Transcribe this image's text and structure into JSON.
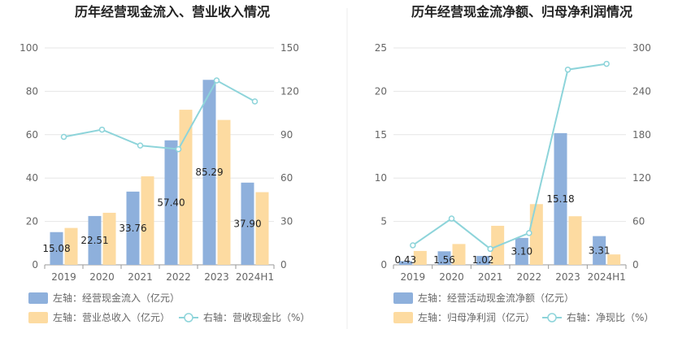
{
  "chart_data": [
    {
      "type": "bar",
      "title": "历年经营现金流入、营业收入情况",
      "categories": [
        "2019",
        "2020",
        "2021",
        "2022",
        "2023",
        "2024H1"
      ],
      "left_axis": {
        "min": 0,
        "max": 100,
        "ticks": [
          0,
          20,
          40,
          60,
          80,
          100
        ]
      },
      "right_axis": {
        "min": 0,
        "max": 150,
        "ticks": [
          0,
          30,
          60,
          90,
          120,
          150
        ]
      },
      "series": [
        {
          "name": "左轴：经营现金流入（亿元）",
          "kind": "bar",
          "axis": "left",
          "color": "#8eb0dc",
          "values": [
            15.08,
            22.51,
            33.76,
            57.4,
            85.29,
            37.9
          ],
          "labels": [
            "15.08",
            "22.51",
            "33.76",
            "57.40",
            "85.29",
            "37.90"
          ]
        },
        {
          "name": "左轴：营业总收入（亿元）",
          "kind": "bar",
          "axis": "left",
          "color": "#fddba1",
          "values": [
            17.0,
            24.0,
            40.8,
            71.5,
            66.8,
            33.5
          ]
        },
        {
          "name": "右轴：营收现金比（%）",
          "kind": "line",
          "axis": "right",
          "color": "#8dd4da",
          "values": [
            88.5,
            93.5,
            82.5,
            80.0,
            127.5,
            113.0
          ]
        }
      ]
    },
    {
      "type": "bar",
      "title": "历年经营现金流净额、归母净利润情况",
      "categories": [
        "2019",
        "2020",
        "2021",
        "2022",
        "2023",
        "2024H1"
      ],
      "left_axis": {
        "min": 0,
        "max": 25,
        "ticks": [
          0,
          5,
          10,
          15,
          20,
          25
        ]
      },
      "right_axis": {
        "min": 0,
        "max": 300,
        "ticks": [
          0,
          60,
          120,
          180,
          240,
          300
        ]
      },
      "series": [
        {
          "name": "左轴：经营活动现金流净额（亿元）",
          "kind": "bar",
          "axis": "left",
          "color": "#8eb0dc",
          "values": [
            0.43,
            1.56,
            1.02,
            3.1,
            15.18,
            3.31
          ],
          "labels": [
            "0.43",
            "1.56",
            "1.02",
            "3.10",
            "15.18",
            "3.31"
          ]
        },
        {
          "name": "左轴：归母净利润（亿元）",
          "kind": "bar",
          "axis": "left",
          "color": "#fddba1",
          "values": [
            1.6,
            2.4,
            4.5,
            7.0,
            5.6,
            1.2
          ]
        },
        {
          "name": "右轴：净现比（%）",
          "kind": "line",
          "axis": "right",
          "color": "#8dd4da",
          "values": [
            27,
            64,
            22,
            44,
            270,
            278
          ]
        }
      ]
    }
  ]
}
